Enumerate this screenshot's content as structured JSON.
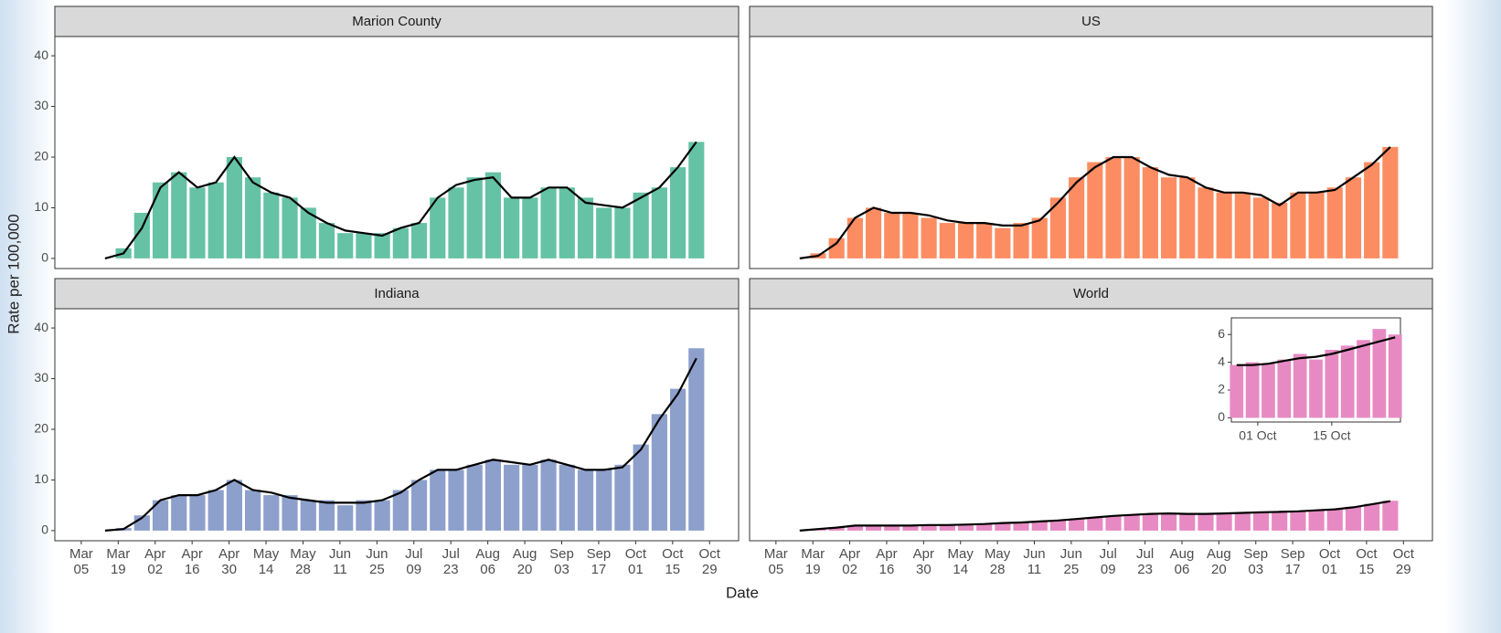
{
  "x_label": "Date",
  "y_label": "Rate per 100,000",
  "chart_data": [
    {
      "type": "bar",
      "title": "Marion County",
      "color": "#66c2a5",
      "line_color": "#000000",
      "xlim": [
        "Feb 23",
        "Nov 09"
      ],
      "ylim": [
        -2,
        43.8
      ],
      "yticks": [
        0,
        10,
        20,
        30,
        40
      ],
      "x": [
        "Mar 14",
        "Mar 21",
        "Mar 28",
        "Apr 04",
        "Apr 11",
        "Apr 18",
        "Apr 25",
        "May 02",
        "May 09",
        "May 16",
        "May 23",
        "May 30",
        "Jun 06",
        "Jun 13",
        "Jun 20",
        "Jun 27",
        "Jul 04",
        "Jul 11",
        "Jul 18",
        "Jul 25",
        "Aug 01",
        "Aug 08",
        "Aug 15",
        "Aug 22",
        "Aug 29",
        "Sep 05",
        "Sep 12",
        "Sep 19",
        "Sep 26",
        "Oct 03",
        "Oct 10",
        "Oct 17",
        "Oct 24"
      ],
      "values": [
        0,
        2,
        9,
        15,
        17,
        14,
        15,
        20,
        16,
        13,
        12,
        10,
        7,
        5,
        5,
        5,
        6,
        7,
        12,
        14,
        16,
        17,
        12,
        12,
        14,
        14,
        12,
        10,
        10,
        13,
        14,
        18,
        23
      ],
      "average": [
        0,
        1,
        6,
        14,
        17,
        14,
        15,
        20,
        15,
        13,
        12,
        9,
        7,
        5.5,
        5,
        4.5,
        6,
        7,
        12,
        14.5,
        15.5,
        16,
        12,
        12,
        14,
        14,
        11,
        10.5,
        10,
        12,
        14,
        18,
        23
      ]
    },
    {
      "type": "bar",
      "title": "US",
      "color": "#fc8d62",
      "line_color": "#000000",
      "xlim": [
        "Feb 23",
        "Nov 09"
      ],
      "ylim": [
        -2,
        43.8
      ],
      "x": [
        "Mar 14",
        "Mar 21",
        "Mar 28",
        "Apr 04",
        "Apr 11",
        "Apr 18",
        "Apr 25",
        "May 02",
        "May 09",
        "May 16",
        "May 23",
        "May 30",
        "Jun 06",
        "Jun 13",
        "Jun 20",
        "Jun 27",
        "Jul 04",
        "Jul 11",
        "Jul 18",
        "Jul 25",
        "Aug 01",
        "Aug 08",
        "Aug 15",
        "Aug 22",
        "Aug 29",
        "Sep 05",
        "Sep 12",
        "Sep 19",
        "Sep 26",
        "Oct 03",
        "Oct 10",
        "Oct 17",
        "Oct 24"
      ],
      "values": [
        0,
        1,
        4,
        8,
        10,
        9,
        9,
        8,
        7,
        7,
        7,
        6,
        7,
        8,
        12,
        16,
        19,
        20,
        20,
        18,
        16,
        16,
        14,
        13,
        13,
        12,
        11,
        13,
        13,
        14,
        16,
        19,
        22
      ],
      "average": [
        0,
        0.5,
        3,
        8,
        10,
        9,
        9,
        8.5,
        7.5,
        7,
        7,
        6.5,
        6.5,
        7.5,
        11,
        15,
        18,
        20,
        20,
        18,
        16.5,
        16,
        14,
        13,
        13,
        12.5,
        10.5,
        13,
        13,
        13.5,
        16,
        18.5,
        22
      ]
    },
    {
      "type": "bar",
      "title": "Indiana",
      "color": "#8da0cb",
      "line_color": "#000000",
      "xlim": [
        "Feb 23",
        "Nov 09"
      ],
      "ylim": [
        -2,
        43.8
      ],
      "yticks": [
        0,
        10,
        20,
        30,
        40
      ],
      "xticks": [
        "Mar 05",
        "Mar 19",
        "Apr 02",
        "Apr 16",
        "Apr 30",
        "May 14",
        "May 28",
        "Jun 11",
        "Jun 25",
        "Jul 09",
        "Jul 23",
        "Aug 06",
        "Aug 20",
        "Sep 03",
        "Sep 17",
        "Oct 01",
        "Oct 15",
        "Oct 29"
      ],
      "x": [
        "Mar 14",
        "Mar 21",
        "Mar 28",
        "Apr 04",
        "Apr 11",
        "Apr 18",
        "Apr 25",
        "May 02",
        "May 09",
        "May 16",
        "May 23",
        "May 30",
        "Jun 06",
        "Jun 13",
        "Jun 20",
        "Jun 27",
        "Jul 04",
        "Jul 11",
        "Jul 18",
        "Jul 25",
        "Aug 01",
        "Aug 08",
        "Aug 15",
        "Aug 22",
        "Aug 29",
        "Sep 05",
        "Sep 12",
        "Sep 19",
        "Sep 26",
        "Oct 03",
        "Oct 10",
        "Oct 17",
        "Oct 24"
      ],
      "values": [
        0,
        0.5,
        3,
        6,
        7,
        7,
        8,
        10,
        8,
        7,
        7,
        6,
        6,
        5,
        6,
        6,
        8,
        10,
        12,
        12,
        13,
        14,
        13,
        13,
        14,
        13,
        12,
        12,
        13,
        17,
        23,
        28,
        36
      ],
      "average": [
        0,
        0.3,
        2.5,
        6,
        7,
        7,
        8,
        10,
        8,
        7.5,
        6.5,
        6,
        5.5,
        5.5,
        5.5,
        6,
        7.5,
        10,
        12,
        12,
        13,
        14,
        13.5,
        13,
        14,
        13,
        12,
        12,
        12.5,
        16,
        22,
        27,
        34
      ]
    },
    {
      "type": "bar",
      "title": "World",
      "color": "#e78ac3",
      "line_color": "#000000",
      "xlim": [
        "Feb 23",
        "Nov 09"
      ],
      "ylim": [
        -2,
        43.8
      ],
      "xticks": [
        "Mar 05",
        "Mar 19",
        "Apr 02",
        "Apr 16",
        "Apr 30",
        "May 14",
        "May 28",
        "Jun 11",
        "Jun 25",
        "Jul 09",
        "Jul 23",
        "Aug 06",
        "Aug 20",
        "Sep 03",
        "Sep 17",
        "Oct 01",
        "Oct 15",
        "Oct 29"
      ],
      "x": [
        "Mar 14",
        "Mar 21",
        "Mar 28",
        "Apr 04",
        "Apr 11",
        "Apr 18",
        "Apr 25",
        "May 02",
        "May 09",
        "May 16",
        "May 23",
        "May 30",
        "Jun 06",
        "Jun 13",
        "Jun 20",
        "Jun 27",
        "Jul 04",
        "Jul 11",
        "Jul 18",
        "Jul 25",
        "Aug 01",
        "Aug 08",
        "Aug 15",
        "Aug 22",
        "Aug 29",
        "Sep 05",
        "Sep 12",
        "Sep 19",
        "Sep 26",
        "Oct 03",
        "Oct 10",
        "Oct 17",
        "Oct 24"
      ],
      "values": [
        0,
        0.3,
        0.7,
        1,
        1,
        1,
        1.1,
        1.1,
        1.1,
        1.2,
        1.3,
        1.5,
        1.6,
        1.8,
        2,
        2.3,
        2.6,
        2.9,
        3.2,
        3.3,
        3.4,
        3.3,
        3.4,
        3.4,
        3.5,
        3.6,
        3.7,
        3.9,
        4,
        4.3,
        4.7,
        5.3,
        5.9
      ],
      "average": [
        0,
        0.3,
        0.6,
        1,
        1,
        1,
        1,
        1.1,
        1.1,
        1.2,
        1.3,
        1.5,
        1.6,
        1.8,
        2,
        2.3,
        2.6,
        2.9,
        3.1,
        3.3,
        3.4,
        3.3,
        3.3,
        3.4,
        3.5,
        3.6,
        3.7,
        3.8,
        4,
        4.2,
        4.6,
        5.2,
        5.8
      ],
      "inset": {
        "xlim": [
          "Sep 26",
          "Oct 28"
        ],
        "ylim": [
          -0.3,
          7.2
        ],
        "yticks": [
          0,
          2,
          4,
          6
        ],
        "xticks": [
          {
            "value": "Oct 01",
            "label": "01 Oct"
          },
          {
            "value": "Oct 15",
            "label": "15 Oct"
          }
        ],
        "x": [
          "Sep 27",
          "Sep 30",
          "Oct 03",
          "Oct 06",
          "Oct 09",
          "Oct 12",
          "Oct 15",
          "Oct 18",
          "Oct 21",
          "Oct 24",
          "Oct 27"
        ],
        "values": [
          3.8,
          4,
          3.9,
          4.2,
          4.6,
          4.2,
          4.9,
          5.2,
          5.6,
          6.4,
          6
        ],
        "average": [
          3.8,
          3.8,
          3.9,
          4.1,
          4.3,
          4.4,
          4.6,
          4.9,
          5.2,
          5.5,
          5.8
        ]
      }
    }
  ]
}
